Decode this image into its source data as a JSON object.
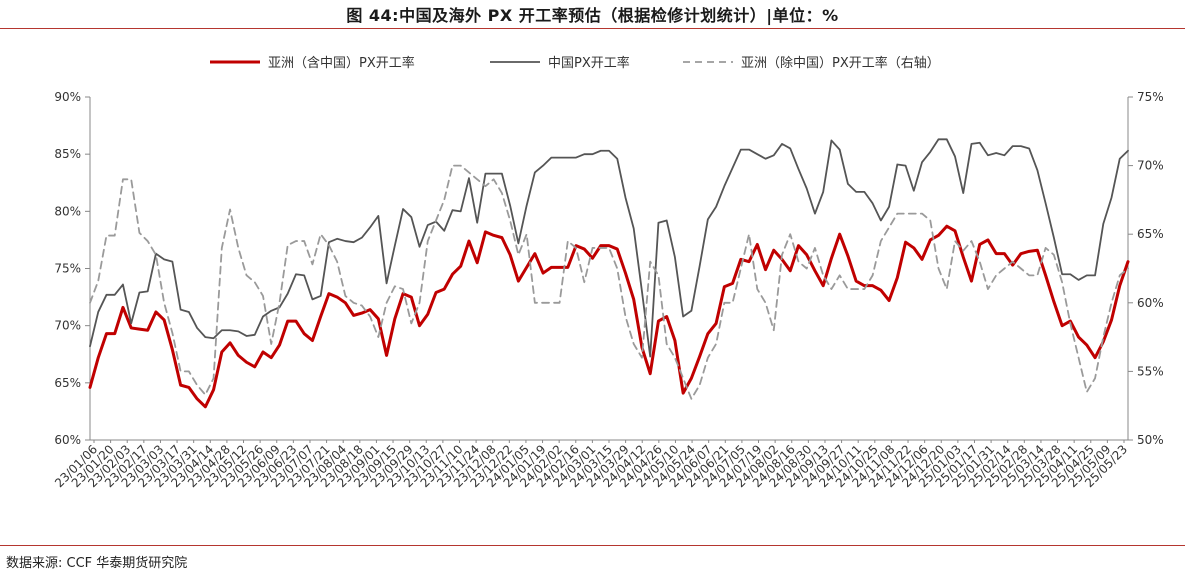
{
  "title": "图 44:中国及海外 PX 开工率预估（根据检修计划统计）|单位：%",
  "source": "数据来源:  CCF  华泰期货研究院",
  "colors": {
    "rule": "#b5362f"
  },
  "chart_data": {
    "type": "line",
    "y_left": {
      "min": 60,
      "max": 90,
      "ticks": [
        "60%",
        "65%",
        "70%",
        "75%",
        "80%",
        "85%",
        "90%"
      ],
      "tick_values": [
        60,
        65,
        70,
        75,
        80,
        85,
        90
      ]
    },
    "y_right": {
      "min": 50,
      "max": 75,
      "ticks": [
        "50%",
        "55%",
        "60%",
        "65%",
        "70%",
        "75%"
      ],
      "tick_values": [
        50,
        55,
        60,
        65,
        70,
        75
      ]
    },
    "x_tick_labels": [
      "23/01/06",
      "23/01/20",
      "23/02/03",
      "23/02/17",
      "23/03/03",
      "23/03/17",
      "23/03/31",
      "23/04/14",
      "23/04/28",
      "23/05/12",
      "23/05/26",
      "23/06/09",
      "23/06/23",
      "23/07/07",
      "23/07/21",
      "23/08/04",
      "23/08/18",
      "23/09/01",
      "23/09/15",
      "23/09/29",
      "23/10/13",
      "23/10/27",
      "23/11/10",
      "23/11/24",
      "23/12/08",
      "23/12/22",
      "24/01/05",
      "24/01/19",
      "24/02/02",
      "24/02/16",
      "24/03/01",
      "24/03/15",
      "24/03/29",
      "24/04/12",
      "24/04/26",
      "24/05/10",
      "24/05/24",
      "24/06/07",
      "24/06/21",
      "24/07/05",
      "24/07/19",
      "24/08/02",
      "24/08/16",
      "24/08/30",
      "24/09/13",
      "24/09/27",
      "24/10/11",
      "24/10/25",
      "24/11/08",
      "24/11/22",
      "24/12/06",
      "24/12/20",
      "25/01/03",
      "25/01/17",
      "25/01/31",
      "25/02/14",
      "25/02/28",
      "25/03/14",
      "25/03/28",
      "25/04/11",
      "25/04/25",
      "25/05/09",
      "25/05/23"
    ],
    "grid": false,
    "legend_position": "top",
    "series": [
      {
        "name": "亚洲（含中国）PX开工率",
        "axis": "left",
        "color": "#c00000",
        "width": 3,
        "dash": "",
        "values": [
          64.6,
          67.2,
          69.3,
          69.3,
          71.6,
          69.8,
          69.7,
          69.6,
          71.2,
          70.5,
          67.9,
          64.8,
          64.6,
          63.6,
          62.9,
          64.4,
          67.7,
          68.5,
          67.4,
          66.8,
          66.4,
          67.7,
          67.2,
          68.3,
          70.4,
          70.4,
          69.3,
          68.7,
          70.8,
          72.8,
          72.5,
          72.0,
          70.9,
          71.1,
          71.4,
          70.6,
          67.4,
          70.6,
          72.8,
          72.5,
          70.0,
          71.0,
          72.9,
          73.2,
          74.5,
          75.2,
          77.4,
          75.5,
          78.2,
          77.9,
          77.7,
          76.2,
          73.9,
          75.1,
          76.3,
          74.6,
          75.1,
          75.1,
          75.1,
          77.0,
          76.7,
          75.9,
          77.0,
          77.0,
          76.7,
          74.6,
          72.3,
          68.1,
          65.8,
          70.4,
          70.8,
          68.7,
          64.1,
          65.4,
          67.3,
          69.3,
          70.2,
          73.4,
          73.7,
          75.8,
          75.6,
          77.1,
          74.9,
          76.6,
          75.8,
          74.8,
          77.0,
          76.2,
          74.8,
          73.5,
          75.9,
          78.0,
          76.1,
          73.9,
          73.5,
          73.5,
          73.1,
          72.2,
          74.2,
          77.3,
          76.8,
          75.8,
          77.5,
          77.9,
          78.7,
          78.3,
          76.0,
          73.9,
          77.1,
          77.5,
          76.3,
          76.3,
          75.3,
          76.3,
          76.5,
          76.6,
          74.4,
          72.1,
          70.0,
          70.4,
          69.0,
          68.3,
          67.2,
          68.6,
          70.5,
          73.5,
          75.6
        ]
      },
      {
        "name": "中国PX开工率",
        "axis": "left",
        "color": "#555555",
        "width": 1.8,
        "dash": "",
        "values": [
          68.2,
          71.2,
          72.7,
          72.7,
          73.6,
          70.2,
          72.9,
          73.0,
          76.3,
          75.8,
          75.6,
          71.4,
          71.2,
          69.8,
          69.0,
          68.9,
          69.6,
          69.6,
          69.5,
          69.1,
          69.2,
          70.8,
          71.3,
          71.6,
          72.8,
          74.5,
          74.4,
          72.3,
          72.6,
          77.3,
          77.6,
          77.4,
          77.3,
          77.7,
          78.6,
          79.6,
          73.7,
          77.0,
          80.2,
          79.5,
          76.9,
          78.8,
          79.1,
          78.3,
          80.1,
          80.0,
          82.9,
          79.0,
          83.3,
          83.3,
          83.3,
          80.5,
          77.2,
          80.5,
          83.4,
          84.0,
          84.7,
          84.7,
          84.7,
          84.7,
          85.0,
          85.0,
          85.3,
          85.3,
          84.6,
          81.2,
          78.5,
          73.0,
          67.3,
          79.0,
          79.2,
          76.0,
          70.8,
          71.3,
          75.2,
          79.3,
          80.4,
          82.2,
          83.8,
          85.4,
          85.4,
          85.0,
          84.6,
          84.9,
          85.9,
          85.5,
          83.7,
          82.0,
          79.8,
          81.7,
          86.2,
          85.4,
          82.4,
          81.7,
          81.7,
          80.7,
          79.2,
          80.4,
          84.1,
          84.0,
          81.8,
          84.3,
          85.2,
          86.3,
          86.3,
          84.8,
          81.6,
          85.9,
          86.0,
          84.9,
          85.1,
          84.9,
          85.7,
          85.7,
          85.5,
          83.6,
          80.7,
          77.7,
          74.5,
          74.5,
          74.0,
          74.4,
          74.4,
          78.9,
          81.2,
          84.6,
          85.3
        ]
      },
      {
        "name": "亚洲（除中国）PX开工率（右轴）",
        "axis": "right",
        "color": "#9a9a9a",
        "width": 1.8,
        "dash": "7,5",
        "values": [
          60.0,
          61.6,
          64.9,
          64.9,
          69.0,
          69.0,
          65.1,
          64.5,
          63.5,
          60.0,
          57.8,
          55.0,
          55.0,
          54.0,
          53.3,
          54.5,
          64.0,
          66.8,
          64.0,
          62.0,
          61.5,
          60.5,
          57.0,
          60.0,
          64.2,
          64.5,
          64.5,
          62.8,
          65.0,
          64.2,
          63.0,
          60.5,
          60.0,
          59.8,
          59.0,
          57.5,
          60.0,
          61.2,
          61.0,
          58.5,
          60.0,
          64.5,
          66.0,
          67.5,
          70.0,
          70.0,
          69.5,
          69.0,
          68.5,
          69.0,
          68.0,
          66.0,
          63.5,
          65.0,
          60.0,
          60.0,
          60.0,
          60.0,
          64.5,
          64.0,
          61.5,
          64.0,
          64.0,
          64.0,
          62.5,
          59.0,
          57.0,
          56.0,
          63.0,
          62.0,
          57.0,
          56.0,
          54.5,
          53.0,
          54.0,
          56.0,
          57.0,
          60.0,
          60.0,
          62.5,
          65.0,
          61.0,
          60.0,
          58.0,
          63.5,
          65.0,
          63.0,
          62.5,
          64.0,
          62.0,
          61.0,
          62.0,
          61.0,
          61.0,
          61.0,
          62.0,
          64.5,
          65.5,
          66.5,
          66.5,
          66.5,
          66.5,
          66.0,
          62.5,
          61.0,
          64.5,
          63.8,
          64.5,
          63.0,
          61.0,
          62.0,
          62.5,
          63.0,
          62.5,
          62.0,
          62.0,
          64.0,
          63.5,
          61.5,
          58.5,
          56.0,
          53.5,
          54.5,
          57.5,
          60.0,
          62.0,
          62.5
        ]
      }
    ]
  }
}
